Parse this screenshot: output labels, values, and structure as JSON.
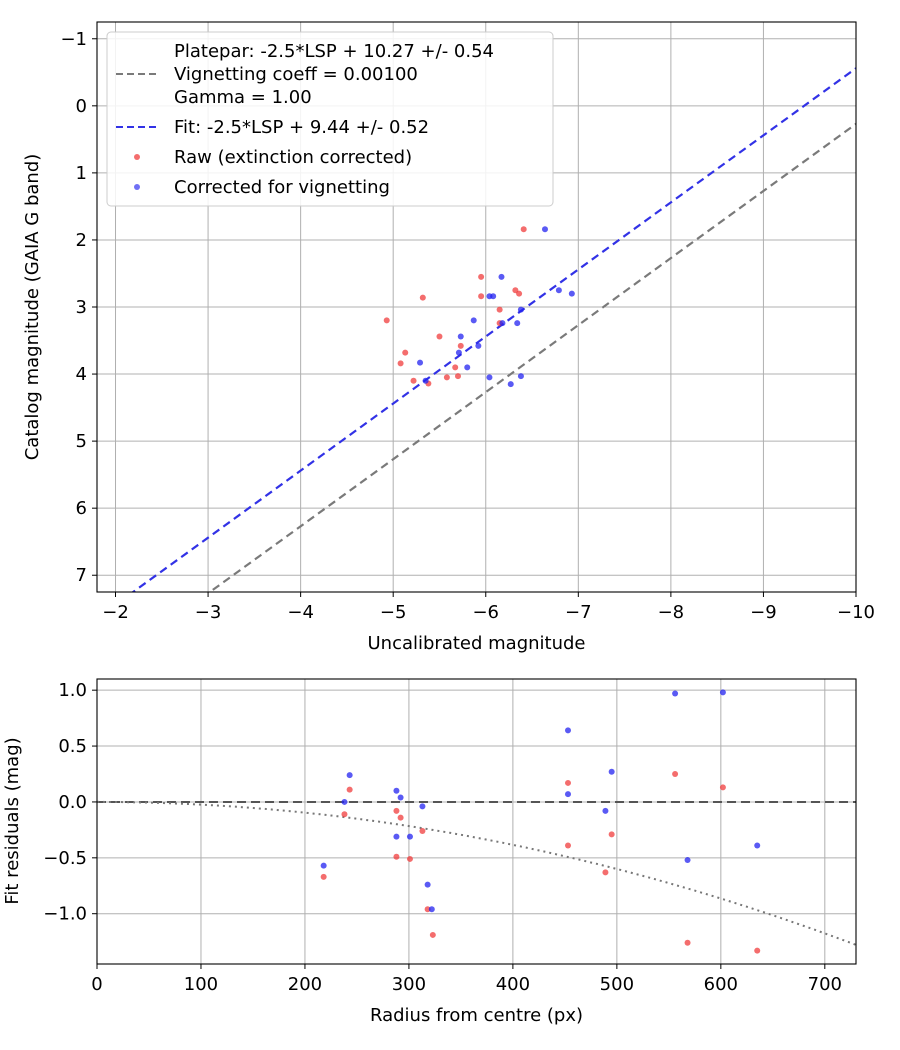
{
  "colors": {
    "raw": "#f03c3c",
    "corrected": "#2323f0",
    "fit_line": "#3232e6",
    "platepar_line": "#7a7a7a",
    "grid": "#b0b0b0"
  },
  "chart_data": [
    {
      "type": "scatter",
      "xlabel": "Uncalibrated magnitude",
      "ylabel": "Catalog magnitude (GAIA G band)",
      "xlim": [
        -1.8,
        -10
      ],
      "ylim": [
        7.25,
        -1.25
      ],
      "x_ticks": [
        -2,
        -3,
        -4,
        -5,
        -6,
        -7,
        -8,
        -9,
        -10
      ],
      "x_tick_labels": [
        "−2",
        "−3",
        "−4",
        "−5",
        "−6",
        "−7",
        "−8",
        "−9",
        "−10"
      ],
      "y_ticks": [
        -1,
        0,
        1,
        2,
        3,
        4,
        5,
        6,
        7
      ],
      "y_tick_labels": [
        "−1",
        "0",
        "1",
        "2",
        "3",
        "4",
        "5",
        "6",
        "7"
      ],
      "grid": true,
      "legend": [
        {
          "key": "platepar",
          "label": "Platepar: -2.5*LSP + 10.27 +/- 0.54"
        },
        {
          "key": "vignetting",
          "label": "Vignetting coeff = 0.00100"
        },
        {
          "key": "gamma",
          "label": "Gamma = 1.00"
        },
        {
          "key": "fit",
          "label": "Fit: -2.5*LSP + 9.44 +/- 0.52"
        },
        {
          "key": "raw",
          "label": "Raw (extinction corrected)"
        },
        {
          "key": "corrected",
          "label": "Corrected for vignetting"
        }
      ],
      "legend_position": "upper-left",
      "lines": [
        {
          "name": "Platepar",
          "style": "dashed",
          "offset": 10.27
        },
        {
          "name": "Fit",
          "style": "dashed",
          "offset": 9.44
        }
      ],
      "series": [
        {
          "name": "Raw (extinction corrected)",
          "points": [
            [
              -4.93,
              3.2
            ],
            [
              -5.08,
              3.84
            ],
            [
              -5.13,
              3.68
            ],
            [
              -5.22,
              4.1
            ],
            [
              -5.32,
              2.86
            ],
            [
              -5.38,
              4.14
            ],
            [
              -5.5,
              3.44
            ],
            [
              -5.58,
              4.05
            ],
            [
              -5.67,
              3.9
            ],
            [
              -5.7,
              4.03
            ],
            [
              -5.73,
              3.58
            ],
            [
              -5.95,
              2.55
            ],
            [
              -5.95,
              2.84
            ],
            [
              -6.15,
              3.04
            ],
            [
              -6.15,
              3.24
            ],
            [
              -6.32,
              2.75
            ],
            [
              -6.36,
              2.8
            ],
            [
              -6.41,
              1.84
            ]
          ]
        },
        {
          "name": "Corrected for vignetting",
          "points": [
            [
              -5.29,
              3.83
            ],
            [
              -5.35,
              4.1
            ],
            [
              -5.71,
              3.68
            ],
            [
              -5.73,
              3.44
            ],
            [
              -5.8,
              3.9
            ],
            [
              -5.87,
              3.2
            ],
            [
              -5.92,
              3.58
            ],
            [
              -6.04,
              2.84
            ],
            [
              -6.04,
              4.05
            ],
            [
              -6.08,
              2.84
            ],
            [
              -6.17,
              2.55
            ],
            [
              -6.18,
              3.24
            ],
            [
              -6.27,
              4.15
            ],
            [
              -6.34,
              3.24
            ],
            [
              -6.38,
              3.04
            ],
            [
              -6.38,
              4.03
            ],
            [
              -6.64,
              1.84
            ],
            [
              -6.79,
              2.75
            ],
            [
              -6.93,
              2.8
            ]
          ]
        }
      ]
    },
    {
      "type": "scatter",
      "xlabel": "Radius from centre (px)",
      "ylabel": "Fit residuals (mag)",
      "xlim": [
        0,
        730
      ],
      "ylim": [
        -1.45,
        1.1
      ],
      "x_ticks": [
        0,
        100,
        200,
        300,
        400,
        500,
        600,
        700
      ],
      "x_tick_labels": [
        "0",
        "100",
        "200",
        "300",
        "400",
        "500",
        "600",
        "700"
      ],
      "y_ticks": [
        1.0,
        0.5,
        0.0,
        -0.5,
        -1.0
      ],
      "y_tick_labels": [
        "1.0",
        "0.5",
        "0.0",
        "−0.5",
        "−1.0"
      ],
      "grid": true,
      "lines": [
        {
          "name": "Zero",
          "style": "dashed",
          "value": 0
        },
        {
          "name": "Vignetting curve",
          "style": "dotted",
          "coeff": 0.001
        }
      ],
      "series": [
        {
          "name": "Raw",
          "points": [
            [
              218,
              -0.67
            ],
            [
              238,
              -0.11
            ],
            [
              243,
              0.11
            ],
            [
              288,
              -0.08
            ],
            [
              288,
              -0.49
            ],
            [
              292,
              -0.14
            ],
            [
              301,
              -0.51
            ],
            [
              313,
              -0.26
            ],
            [
              318,
              -0.96
            ],
            [
              323,
              -1.19
            ],
            [
              453,
              0.17
            ],
            [
              453,
              -0.39
            ],
            [
              489,
              -0.63
            ],
            [
              495,
              -0.29
            ],
            [
              556,
              0.25
            ],
            [
              568,
              -1.26
            ],
            [
              602,
              0.13
            ],
            [
              635,
              -1.33
            ]
          ]
        },
        {
          "name": "Corrected",
          "points": [
            [
              218,
              -0.57
            ],
            [
              238,
              0.0
            ],
            [
              243,
              0.24
            ],
            [
              288,
              0.1
            ],
            [
              288,
              -0.31
            ],
            [
              292,
              0.04
            ],
            [
              301,
              -0.31
            ],
            [
              313,
              -0.04
            ],
            [
              318,
              -0.74
            ],
            [
              322,
              -0.96
            ],
            [
              453,
              0.64
            ],
            [
              453,
              0.07
            ],
            [
              489,
              -0.08
            ],
            [
              495,
              0.27
            ],
            [
              556,
              0.97
            ],
            [
              568,
              -0.52
            ],
            [
              602,
              0.98
            ],
            [
              635,
              -0.39
            ]
          ]
        }
      ]
    }
  ]
}
